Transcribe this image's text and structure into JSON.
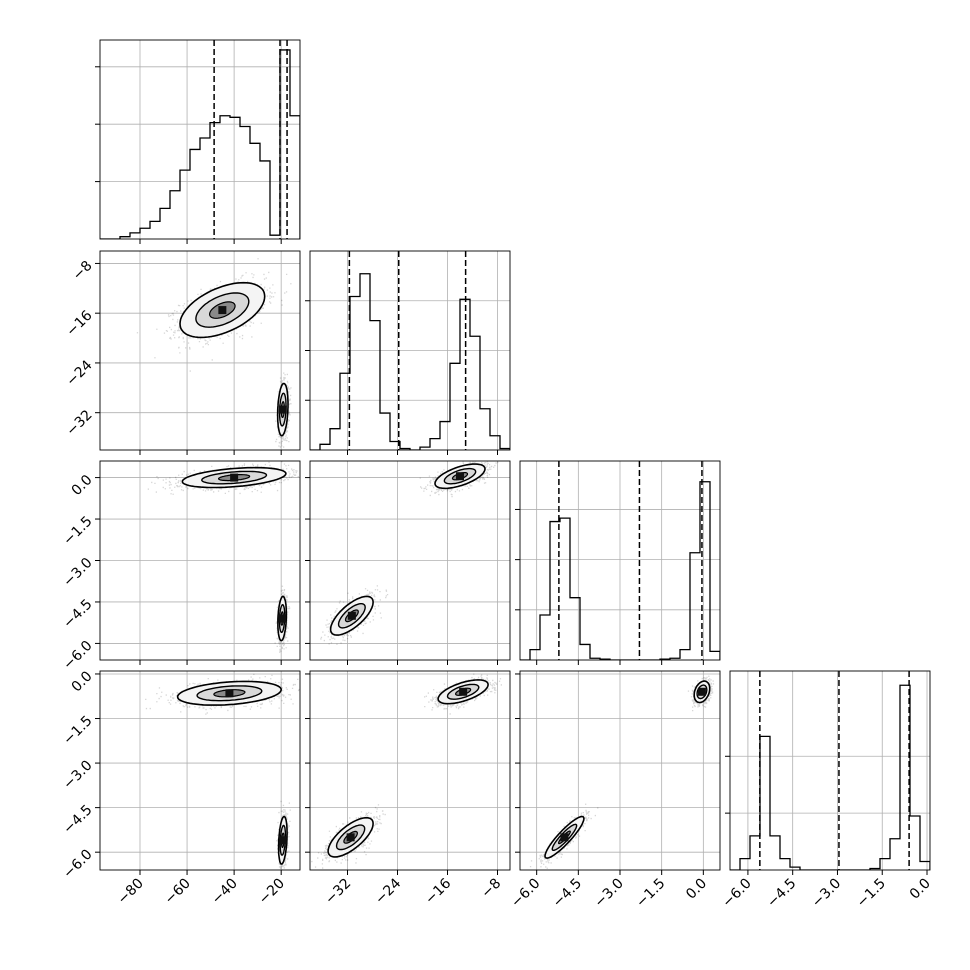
{
  "chart_data": {
    "type": "corner",
    "parameters": [
      {
        "index": 0,
        "range": [
          -97,
          -12
        ],
        "ticks": [
          {
            "v": -80,
            "label": "−80"
          },
          {
            "v": -60,
            "label": "−60"
          },
          {
            "v": -40,
            "label": "−40"
          },
          {
            "v": -20,
            "label": "−20"
          }
        ],
        "quantiles": [
          -48.5,
          -20.5,
          -17.5
        ],
        "hist": {
          "bins": [
            -97,
            -92.75,
            -88.5,
            -84.25,
            -80,
            -75.75,
            -71.5,
            -67.25,
            -63,
            -58.75,
            -54.5,
            -50.25,
            -46,
            -41.75,
            -37.5,
            -33.25,
            -29,
            -24.75,
            -20.5,
            -16.25,
            -12
          ],
          "counts": [
            0,
            0,
            0.3,
            0.8,
            1.4,
            2.3,
            4.0,
            6.3,
            9.0,
            11.7,
            13.2,
            15.2,
            16.1,
            15.9,
            14.7,
            12.5,
            10.2,
            0.5,
            24.7,
            16.1
          ],
          "ymax": 26,
          "yticks": [
            7.5,
            15,
            22.5
          ]
        }
      },
      {
        "index": 1,
        "range": [
          -38,
          -6
        ],
        "ticks": [
          {
            "v": -32,
            "label": "−32"
          },
          {
            "v": -24,
            "label": "−24"
          },
          {
            "v": -16,
            "label": "−16"
          },
          {
            "v": -8,
            "label": "−8"
          }
        ],
        "quantiles": [
          -31.7,
          -23.8,
          -13.1
        ],
        "hist": {
          "bins": [
            -38,
            -36.4,
            -34.8,
            -33.2,
            -31.6,
            -30,
            -28.4,
            -26.8,
            -25.2,
            -23.6,
            -22,
            -20.4,
            -18.8,
            -17.2,
            -15.6,
            -14,
            -12.4,
            -10.8,
            -9.2,
            -7.6,
            -6
          ],
          "counts": [
            0,
            0.4,
            1.5,
            5.4,
            10.8,
            12.4,
            9.1,
            2.6,
            0.6,
            0.1,
            0,
            0.2,
            0.8,
            2.0,
            6.1,
            10.6,
            8.0,
            2.9,
            1.0,
            0.1
          ],
          "ymax": 14,
          "yticks": [
            3.5,
            7,
            10.5
          ]
        }
      },
      {
        "index": 2,
        "range": [
          -6.6,
          0.6
        ],
        "ticks": [
          {
            "v": -6.0,
            "label": "−6.0"
          },
          {
            "v": -4.5,
            "label": "−4.5"
          },
          {
            "v": -3.0,
            "label": "−3.0"
          },
          {
            "v": -1.5,
            "label": "−1.5"
          },
          {
            "v": 0.0,
            "label": "0.0"
          }
        ],
        "quantiles": [
          -5.2,
          -2.3,
          -0.05
        ],
        "hist": {
          "bins": [
            -6.6,
            -6.24,
            -5.88,
            -5.52,
            -5.16,
            -4.8,
            -4.44,
            -4.08,
            -3.72,
            -3.36,
            -3,
            -2.64,
            -2.28,
            -1.92,
            -1.56,
            -1.2,
            -0.84,
            -0.48,
            -0.12,
            0.24,
            0.6
          ],
          "counts": [
            0,
            0.6,
            2.6,
            8.0,
            8.2,
            3.6,
            0.9,
            0.1,
            0.05,
            0,
            0,
            0,
            0,
            0,
            0.05,
            0.1,
            0.6,
            6.2,
            10.3,
            0.5
          ],
          "ymax": 11.5,
          "yticks": [
            2.9,
            5.8,
            8.7
          ]
        }
      },
      {
        "index": 3,
        "range": [
          -6.6,
          0.1
        ],
        "ticks": [
          {
            "v": -6.0,
            "label": "−6.0"
          },
          {
            "v": -4.5,
            "label": "−4.5"
          },
          {
            "v": -3.0,
            "label": "−3.0"
          },
          {
            "v": -1.5,
            "label": "−1.5"
          },
          {
            "v": 0.0,
            "label": "0.0"
          }
        ],
        "quantiles": [
          -5.6,
          -2.95,
          -0.6
        ],
        "hist": {
          "bins": [
            -6.6,
            -6.265,
            -5.93,
            -5.595,
            -5.26,
            -4.925,
            -4.59,
            -4.255,
            -3.92,
            -3.585,
            -3.25,
            -2.915,
            -2.58,
            -2.245,
            -1.91,
            -1.575,
            -1.24,
            -0.905,
            -0.57,
            -0.235,
            0.1
          ],
          "counts": [
            0,
            0.4,
            1.2,
            4.7,
            1.2,
            0.4,
            0.1,
            0,
            0,
            0,
            0,
            0,
            0,
            0,
            0.05,
            0.4,
            1.1,
            6.5,
            1.9,
            0.3
          ],
          "ymax": 7,
          "yticks": [
            2,
            4
          ]
        }
      }
    ],
    "pairs": [
      {
        "x": 0,
        "y": 1,
        "clusters": [
          {
            "mx": -45,
            "my": -15.5,
            "sx": 9,
            "sy": 2.2,
            "rho": 0.5,
            "n": 1300
          },
          {
            "mx": -19.3,
            "my": -31.5,
            "sx": 1.1,
            "sy": 2.1,
            "rho": 0.2,
            "n": 900
          }
        ]
      },
      {
        "x": 0,
        "y": 2,
        "clusters": [
          {
            "mx": -40,
            "my": 0.0,
            "sx": 11,
            "sy": 0.18,
            "rho": 0.4,
            "n": 1300
          },
          {
            "mx": -19.6,
            "my": -5.1,
            "sx": 0.9,
            "sy": 0.4,
            "rho": 0.2,
            "n": 900
          }
        ]
      },
      {
        "x": 1,
        "y": 2,
        "clusters": [
          {
            "mx": -14,
            "my": 0.05,
            "sx": 2.0,
            "sy": 0.22,
            "rho": 0.6,
            "n": 1100
          },
          {
            "mx": -31.3,
            "my": -5.0,
            "sx": 1.7,
            "sy": 0.35,
            "rho": 0.7,
            "n": 1100
          }
        ]
      },
      {
        "x": 0,
        "y": 3,
        "clusters": [
          {
            "mx": -42,
            "my": -0.65,
            "sx": 11,
            "sy": 0.2,
            "rho": 0.3,
            "n": 1300
          },
          {
            "mx": -19.3,
            "my": -5.6,
            "sx": 0.9,
            "sy": 0.4,
            "rho": 0.3,
            "n": 900
          }
        ]
      },
      {
        "x": 1,
        "y": 3,
        "clusters": [
          {
            "mx": -13.5,
            "my": -0.6,
            "sx": 2.0,
            "sy": 0.2,
            "rho": 0.6,
            "n": 1100
          },
          {
            "mx": -31.5,
            "my": -5.5,
            "sx": 1.8,
            "sy": 0.33,
            "rho": 0.7,
            "n": 1100
          }
        ]
      },
      {
        "x": 2,
        "y": 3,
        "clusters": [
          {
            "mx": -0.05,
            "my": -0.6,
            "sx": 0.14,
            "sy": 0.18,
            "rho": 0.3,
            "n": 900
          },
          {
            "mx": -5.0,
            "my": -5.5,
            "sx": 0.35,
            "sy": 0.35,
            "rho": 0.9,
            "n": 1100
          }
        ]
      }
    ],
    "grid": true,
    "quantile_line_style": "dashed"
  }
}
